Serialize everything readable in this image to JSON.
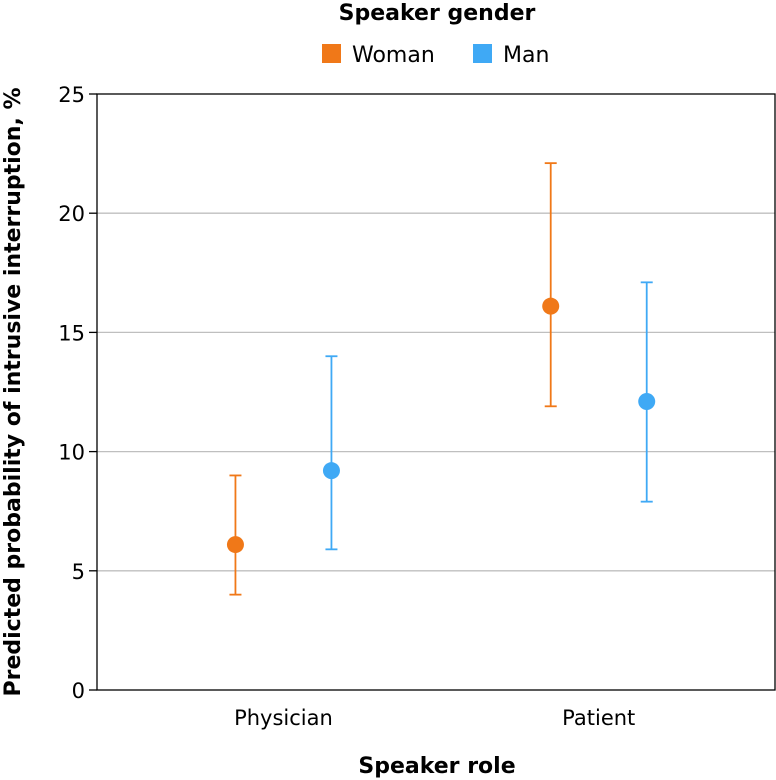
{
  "chart_data": {
    "type": "scatter",
    "subtype": "point-with-error-bars",
    "legend": {
      "title": "Speaker gender",
      "placement": "top"
    },
    "categories": [
      "Physician",
      "Patient"
    ],
    "series": [
      {
        "name": "Woman",
        "color": "#f07818",
        "values": [
          6.1,
          16.1
        ],
        "lower": [
          4.0,
          11.9
        ],
        "upper": [
          9.0,
          22.1
        ]
      },
      {
        "name": "Man",
        "color": "#3fa9f5",
        "values": [
          9.2,
          12.1
        ],
        "lower": [
          5.9,
          7.9
        ],
        "upper": [
          14.0,
          17.1
        ]
      }
    ],
    "xlabel": "Speaker role",
    "ylabel": "Predicted probability of intrusive interruption, %",
    "ylim": [
      0,
      25
    ],
    "yticks": [
      0,
      5,
      10,
      15,
      20,
      25
    ],
    "grid": true
  }
}
